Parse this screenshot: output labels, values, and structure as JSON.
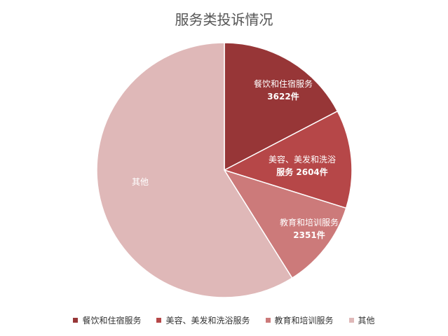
{
  "chart_data": {
    "type": "pie",
    "title": "服务类投诉情况",
    "legend_position": "bottom",
    "slices": [
      {
        "name": "餐饮和住宿服务",
        "value": 3622,
        "color": "#973637",
        "label_lines": [
          "餐饮和住宿服务",
          "3622件"
        ]
      },
      {
        "name": "美容、美发和洗浴服务",
        "value": 2604,
        "color": "#b64748",
        "label_lines": [
          "美容、美发和洗浴",
          "服务 2604件"
        ]
      },
      {
        "name": "教育和培训服务",
        "value": 2351,
        "color": "#cc7a7a",
        "label_lines": [
          "教育和培训服务",
          "2351件"
        ]
      },
      {
        "name": "其他",
        "value": 12300,
        "color": "#dfb8b8",
        "label_lines": [
          "其他"
        ]
      }
    ]
  }
}
